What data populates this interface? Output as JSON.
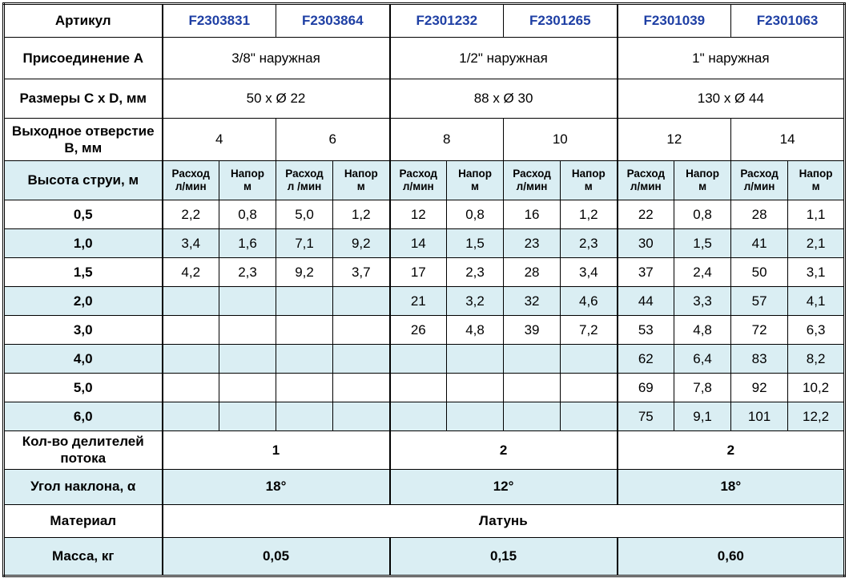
{
  "colors": {
    "shade": "#daeef3",
    "article_blue": "#1e3fa4",
    "border": "#000000",
    "text": "#000000"
  },
  "table": {
    "article": {
      "label": "Артикул",
      "values": [
        "F2303831",
        "F2303864",
        "F2301232",
        "F2301265",
        "F2301039",
        "F2301063"
      ]
    },
    "connection": {
      "label": "Присоединение А",
      "values": [
        "3/8\" наружная",
        "1/2\" наружная",
        "1\" наружная"
      ]
    },
    "size": {
      "label": "Размеры С х D, мм",
      "values": [
        "50 х Ø 22",
        "88 х Ø 30",
        "130 х Ø 44"
      ]
    },
    "outlet": {
      "label": "Выходное отверстие В, мм",
      "values": [
        "4",
        "6",
        "8",
        "10",
        "12",
        "14"
      ]
    },
    "jet_header": {
      "label": "Высота струи, м",
      "cols": [
        {
          "l1": "Расход",
          "l2": "л/мин"
        },
        {
          "l1": "Напор",
          "l2": "м"
        },
        {
          "l1": "Расход",
          "l2": "л /мин"
        },
        {
          "l1": "Напор",
          "l2": "м"
        },
        {
          "l1": "Расход",
          "l2": "л/мин"
        },
        {
          "l1": "Напор",
          "l2": "м"
        },
        {
          "l1": "Расход",
          "l2": "л/мин"
        },
        {
          "l1": "Напор",
          "l2": "м"
        },
        {
          "l1": "Расход",
          "l2": "л/мин"
        },
        {
          "l1": "Напор",
          "l2": "м"
        },
        {
          "l1": "Расход",
          "l2": "л/мин"
        },
        {
          "l1": "Напор",
          "l2": "м"
        }
      ]
    },
    "jet_rows": [
      {
        "height": "0,5",
        "values": [
          "2,2",
          "0,8",
          "5,0",
          "1,2",
          "12",
          "0,8",
          "16",
          "1,2",
          "22",
          "0,8",
          "28",
          "1,1"
        ]
      },
      {
        "height": "1,0",
        "values": [
          "3,4",
          "1,6",
          "7,1",
          "9,2",
          "14",
          "1,5",
          "23",
          "2,3",
          "30",
          "1,5",
          "41",
          "2,1"
        ]
      },
      {
        "height": "1,5",
        "values": [
          "4,2",
          "2,3",
          "9,2",
          "3,7",
          "17",
          "2,3",
          "28",
          "3,4",
          "37",
          "2,4",
          "50",
          "3,1"
        ]
      },
      {
        "height": "2,0",
        "values": [
          "",
          "",
          "",
          "",
          "21",
          "3,2",
          "32",
          "4,6",
          "44",
          "3,3",
          "57",
          "4,1"
        ]
      },
      {
        "height": "3,0",
        "values": [
          "",
          "",
          "",
          "",
          "26",
          "4,8",
          "39",
          "7,2",
          "53",
          "4,8",
          "72",
          "6,3"
        ]
      },
      {
        "height": "4,0",
        "values": [
          "",
          "",
          "",
          "",
          "",
          "",
          "",
          "",
          "62",
          "6,4",
          "83",
          "8,2"
        ]
      },
      {
        "height": "5,0",
        "values": [
          "",
          "",
          "",
          "",
          "",
          "",
          "",
          "",
          "69",
          "7,8",
          "92",
          "10,2"
        ]
      },
      {
        "height": "6,0",
        "values": [
          "",
          "",
          "",
          "",
          "",
          "",
          "",
          "",
          "75",
          "9,1",
          "101",
          "12,2"
        ]
      }
    ],
    "dividers": {
      "label": "Кол-во делителей потока",
      "values": [
        "1",
        "2",
        "2"
      ]
    },
    "angle": {
      "label": "Угол наклона, α",
      "values": [
        "18°",
        "12°",
        "18°"
      ]
    },
    "material": {
      "label": "Материал",
      "value": "Латунь"
    },
    "mass": {
      "label": "Масса, кг",
      "values": [
        "0,05",
        "0,15",
        "0,60"
      ]
    }
  }
}
